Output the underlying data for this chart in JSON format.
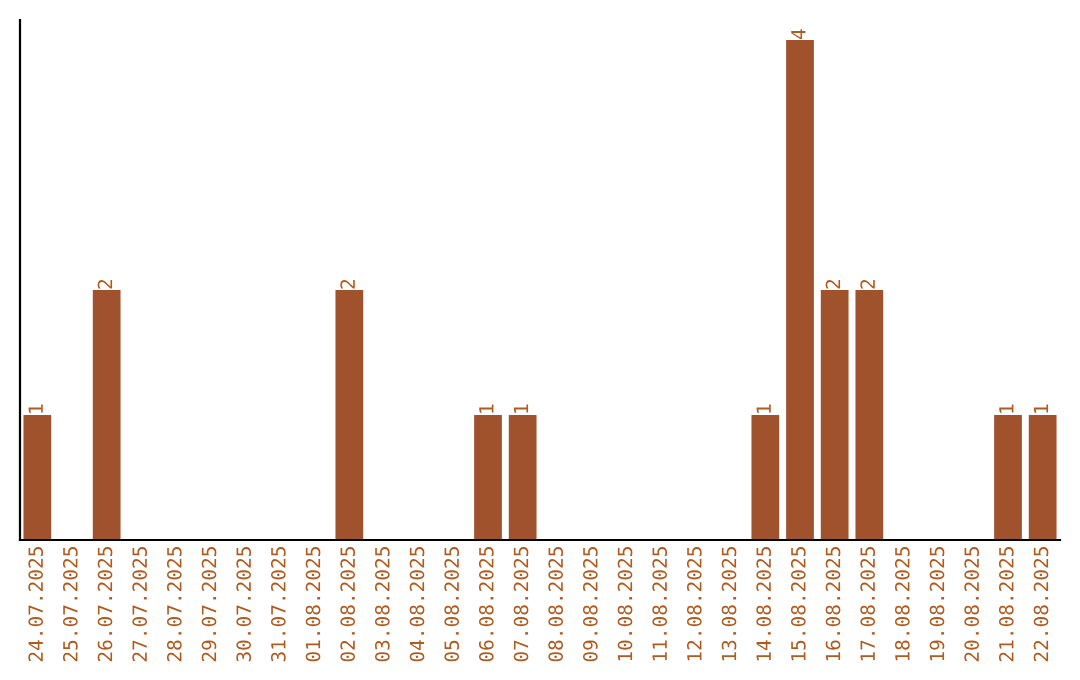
{
  "chart_data": {
    "type": "bar",
    "categories": [
      "24.07.2025",
      "25.07.2025",
      "26.07.2025",
      "27.07.2025",
      "28.07.2025",
      "29.07.2025",
      "30.07.2025",
      "31.07.2025",
      "01.08.2025",
      "02.08.2025",
      "03.08.2025",
      "04.08.2025",
      "05.08.2025",
      "06.08.2025",
      "07.08.2025",
      "08.08.2025",
      "09.08.2025",
      "10.08.2025",
      "11.08.2025",
      "12.08.2025",
      "13.08.2025",
      "14.08.2025",
      "15.08.2025",
      "16.08.2025",
      "17.08.2025",
      "18.08.2025",
      "19.08.2025",
      "20.08.2025",
      "21.08.2025",
      "22.08.2025"
    ],
    "values": [
      1,
      0,
      2,
      0,
      0,
      0,
      0,
      0,
      0,
      2,
      0,
      0,
      0,
      1,
      1,
      0,
      0,
      0,
      0,
      0,
      0,
      1,
      4,
      2,
      2,
      0,
      0,
      0,
      1,
      1
    ],
    "value_labels": [
      "1",
      null,
      "2",
      null,
      null,
      null,
      null,
      null,
      null,
      "2",
      null,
      null,
      null,
      "1",
      "1",
      null,
      null,
      null,
      null,
      null,
      null,
      "1",
      "4",
      "2",
      "2",
      null,
      null,
      null,
      "1",
      "1"
    ],
    "color": "#a0522d",
    "tick_labels": "x",
    "grid": false,
    "legend": false
  }
}
